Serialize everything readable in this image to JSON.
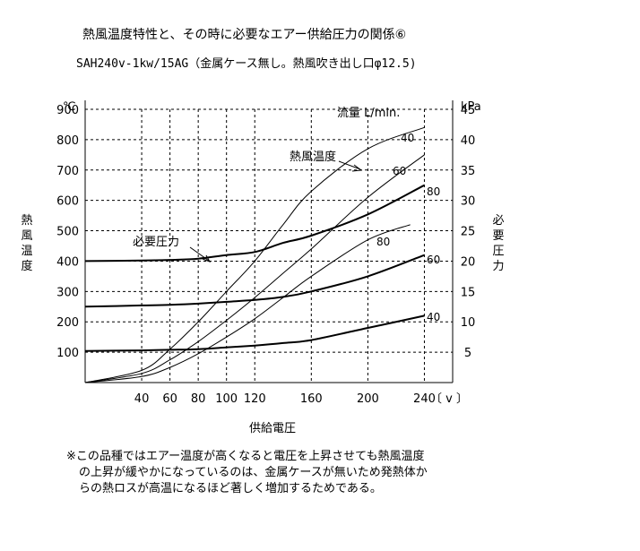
{
  "title": "熱風温度特性と、その時に必要なエアー供給圧力の関係⑥",
  "subtitle": "SAH240v-1kw/15AG（金属ケース無し。熱風吹き出し口φ12.5)",
  "left_axis_label": "熱風温度",
  "right_axis_label": "必要圧力",
  "left_axis_unit": "℃",
  "right_axis_unit": "kPa",
  "x_axis_label": "供給電圧",
  "x_axis_unit": "〔 v 〕",
  "flow_label": "流量 L/min.",
  "temp_group_label": "熱風温度",
  "pressure_group_label": "必要圧力",
  "note_lines": [
    "※この品種ではエアー温度が高くなると電圧を上昇させても熱風温度",
    "の上昇が緩やかになっているのは、金属ケースが無いため発熱体か",
    "らの熱ロスが高温になるほど著しく増加するためである。"
  ],
  "chart_data": {
    "type": "line",
    "x_ticks": [
      40,
      60,
      80,
      100,
      120,
      160,
      200,
      240
    ],
    "x_tick_labels": [
      "40",
      "60",
      "80",
      "100",
      "120",
      "160",
      "200",
      "240"
    ],
    "xlim": [
      0,
      260
    ],
    "y_left_ticks": [
      100,
      200,
      300,
      400,
      500,
      600,
      700,
      800,
      900
    ],
    "y_left_tick_labels": [
      "100",
      "200",
      "300",
      "400",
      "500",
      "600",
      "700",
      "800",
      "900"
    ],
    "y_left_lim": [
      0,
      900
    ],
    "y_right_ticks": [
      5,
      10,
      15,
      20,
      25,
      30,
      35,
      40,
      45
    ],
    "y_right_tick_labels": [
      "5",
      "10",
      "15",
      "20",
      "25",
      "30",
      "35",
      "40",
      "45"
    ],
    "y_right_lim": [
      0,
      45
    ],
    "grid": true,
    "temperature_series": [
      {
        "name": "40",
        "axis": "left",
        "x": [
          0,
          40,
          60,
          80,
          100,
          120,
          140,
          160,
          200,
          240
        ],
        "y": [
          0,
          40,
          110,
          200,
          300,
          400,
          520,
          630,
          770,
          840
        ]
      },
      {
        "name": "60",
        "axis": "left",
        "x": [
          0,
          40,
          60,
          80,
          100,
          120,
          140,
          160,
          200,
          240
        ],
        "y": [
          0,
          30,
          75,
          135,
          205,
          280,
          360,
          440,
          610,
          750
        ]
      },
      {
        "name": "80",
        "axis": "left",
        "x": [
          0,
          40,
          60,
          80,
          100,
          120,
          140,
          160,
          200,
          230
        ],
        "y": [
          0,
          20,
          50,
          95,
          150,
          210,
          280,
          350,
          470,
          520
        ]
      }
    ],
    "pressure_series": [
      {
        "name": "80",
        "axis": "right",
        "x": [
          0,
          40,
          60,
          80,
          100,
          120,
          140,
          160,
          200,
          240
        ],
        "y": [
          20,
          20.1,
          20.2,
          20.4,
          21,
          21.5,
          23,
          24.2,
          27.7,
          32.5
        ]
      },
      {
        "name": "60",
        "axis": "right",
        "x": [
          0,
          40,
          60,
          80,
          100,
          120,
          140,
          160,
          200,
          240
        ],
        "y": [
          12.5,
          12.7,
          12.8,
          13,
          13.3,
          13.6,
          14.1,
          15,
          17.5,
          21
        ]
      },
      {
        "name": "40",
        "axis": "right",
        "x": [
          0,
          40,
          60,
          80,
          100,
          120,
          140,
          160,
          200,
          240
        ],
        "y": [
          5.2,
          5.3,
          5.4,
          5.5,
          5.8,
          6.1,
          6.5,
          7,
          9,
          11
        ]
      }
    ]
  }
}
